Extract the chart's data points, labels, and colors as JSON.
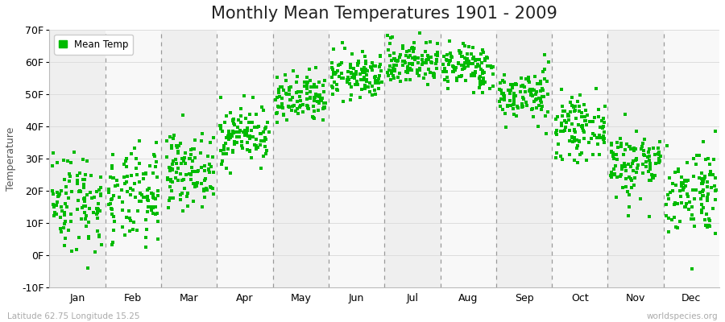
{
  "title": "Monthly Mean Temperatures 1901 - 2009",
  "ylabel": "Temperature",
  "months": [
    "Jan",
    "Feb",
    "Mar",
    "Apr",
    "May",
    "Jun",
    "Jul",
    "Aug",
    "Sep",
    "Oct",
    "Nov",
    "Dec"
  ],
  "ylim": [
    -10,
    70
  ],
  "yticks": [
    -10,
    0,
    10,
    20,
    30,
    40,
    50,
    60,
    70
  ],
  "ytick_labels": [
    "-10F",
    "0F",
    "10F",
    "20F",
    "30F",
    "40F",
    "50F",
    "60F",
    "70F"
  ],
  "dot_color": "#00BB00",
  "dot_size": 5,
  "background_color": "#ffffff",
  "band_colors": [
    "#efefef",
    "#f8f8f8"
  ],
  "legend_label": "Mean Temp",
  "bottom_left_text": "Latitude 62.75 Longitude 15.25",
  "bottom_right_text": "worldspecies.org",
  "title_fontsize": 15,
  "axis_label_fontsize": 9,
  "tick_fontsize": 9,
  "monthly_means_f": [
    17.0,
    17.5,
    26.5,
    37.5,
    48.0,
    55.5,
    60.0,
    58.5,
    49.5,
    39.5,
    28.5,
    20.0
  ],
  "monthly_stds_f": [
    8.0,
    7.5,
    5.5,
    4.5,
    4.0,
    3.5,
    3.5,
    3.5,
    4.0,
    4.5,
    5.5,
    7.0
  ],
  "n_years": 109,
  "seed": 42
}
